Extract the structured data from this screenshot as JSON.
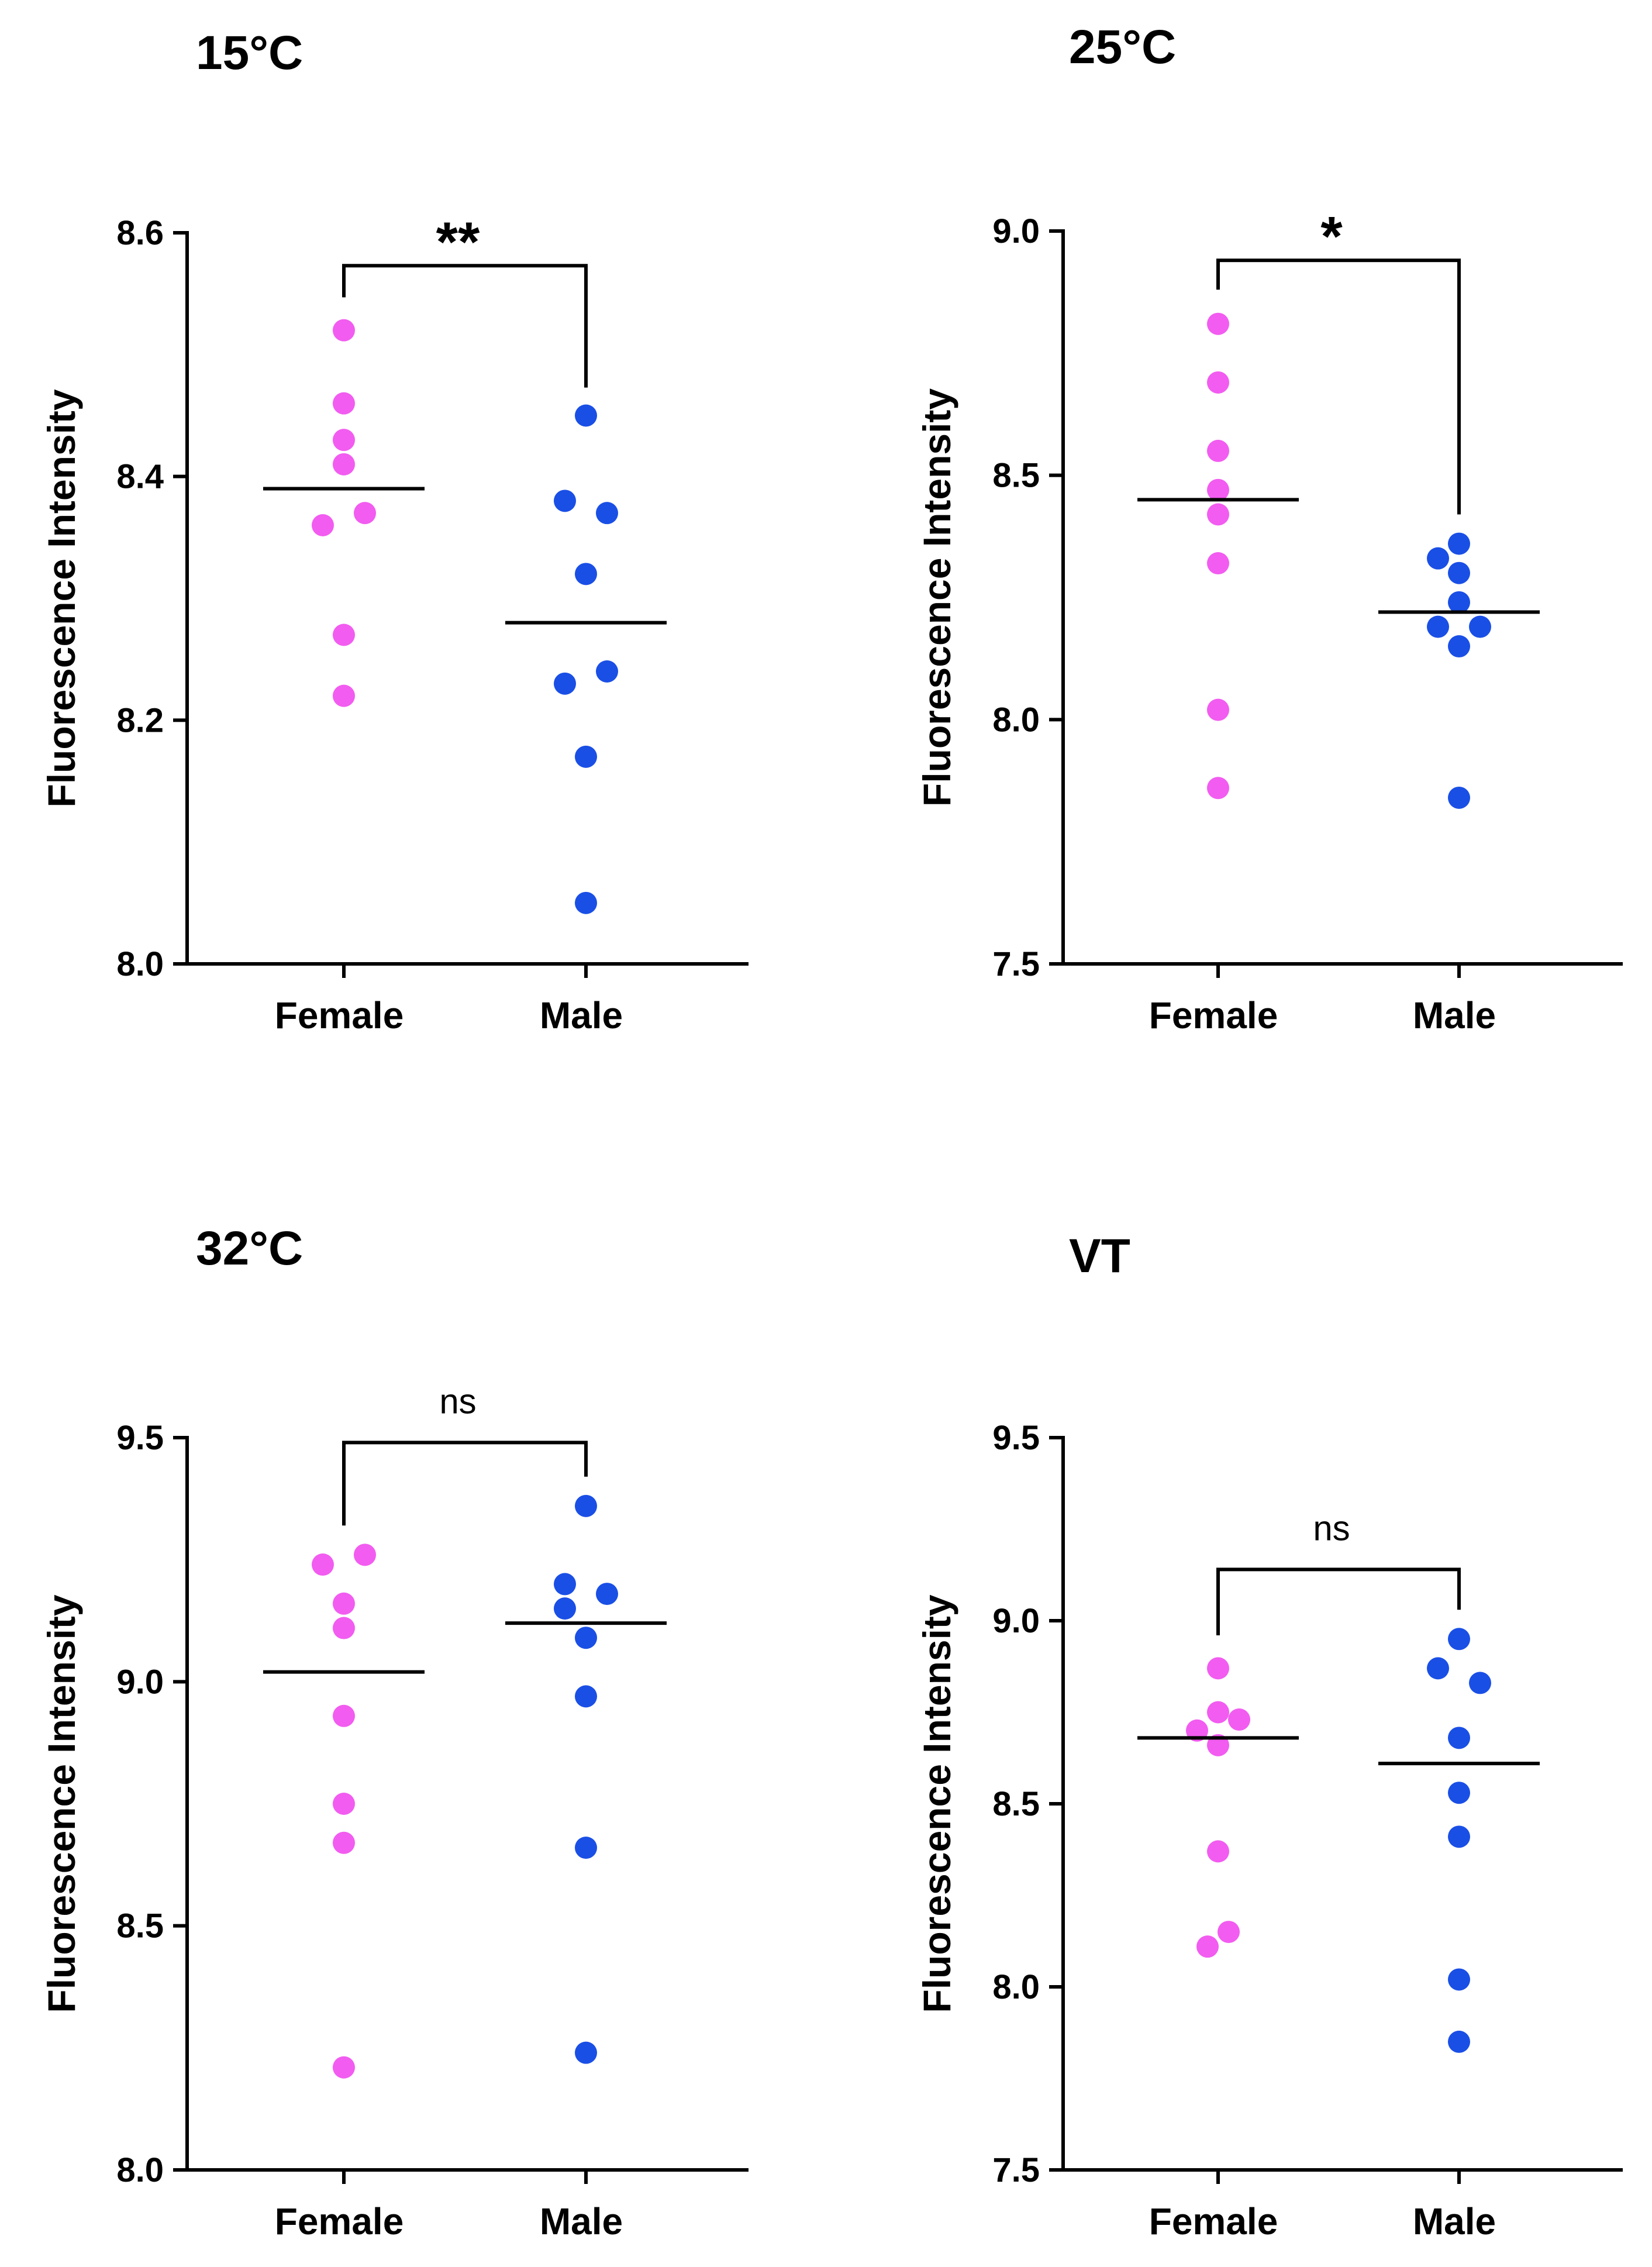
{
  "chart_data": [
    {
      "type": "scatter",
      "title": "15°C",
      "xlabel": "",
      "ylabel": "Fluorescence Intensity",
      "ylim": [
        8.0,
        8.6
      ],
      "yticks": [
        8.0,
        8.2,
        8.4,
        8.6
      ],
      "ytick_labels": [
        "8.0",
        "8.2",
        "8.4",
        "8.6"
      ],
      "categories": [
        "Female",
        "Male"
      ],
      "series": [
        {
          "name": "Female",
          "color": "#f25cf0",
          "mean": 8.39,
          "points": [
            {
              "offset": 0,
              "value": 8.52
            },
            {
              "offset": 0,
              "value": 8.46
            },
            {
              "offset": 0,
              "value": 8.43
            },
            {
              "offset": 0,
              "value": 8.41
            },
            {
              "offset": 1,
              "value": 8.37
            },
            {
              "offset": -1,
              "value": 8.36
            },
            {
              "offset": 0,
              "value": 8.27
            },
            {
              "offset": 0,
              "value": 8.22
            }
          ]
        },
        {
          "name": "Male",
          "color": "#1a4fe6",
          "mean": 8.28,
          "points": [
            {
              "offset": 0,
              "value": 8.45
            },
            {
              "offset": -1,
              "value": 8.38
            },
            {
              "offset": 1,
              "value": 8.37
            },
            {
              "offset": 0,
              "value": 8.32
            },
            {
              "offset": 1,
              "value": 8.24
            },
            {
              "offset": -1,
              "value": 8.23
            },
            {
              "offset": 0,
              "value": 8.17
            },
            {
              "offset": 0,
              "value": 8.05
            }
          ]
        }
      ],
      "significance": {
        "label": "**",
        "style": "star",
        "bracket_y": 8.573,
        "left_drop": 8.547,
        "right_drop": 8.473
      }
    },
    {
      "type": "scatter",
      "title": "25°C",
      "xlabel": "",
      "ylabel": "Fluorescence Intensity",
      "ylim": [
        7.5,
        9.0
      ],
      "yticks": [
        7.5,
        8.0,
        8.5,
        9.0
      ],
      "ytick_labels": [
        "7.5",
        "8.0",
        "8.5",
        "9.0"
      ],
      "categories": [
        "Female",
        "Male"
      ],
      "series": [
        {
          "name": "Female",
          "color": "#f25cf0",
          "mean": 8.45,
          "points": [
            {
              "offset": 0,
              "value": 8.81
            },
            {
              "offset": 0,
              "value": 8.69
            },
            {
              "offset": 0,
              "value": 8.55
            },
            {
              "offset": 0,
              "value": 8.47
            },
            {
              "offset": 0,
              "value": 8.42
            },
            {
              "offset": 0,
              "value": 8.32
            },
            {
              "offset": 0,
              "value": 8.02
            },
            {
              "offset": 0,
              "value": 7.86
            }
          ]
        },
        {
          "name": "Male",
          "color": "#1a4fe6",
          "mean": 8.22,
          "points": [
            {
              "offset": 0,
              "value": 8.36
            },
            {
              "offset": -1,
              "value": 8.33
            },
            {
              "offset": 0,
              "value": 8.3
            },
            {
              "offset": 0,
              "value": 8.24
            },
            {
              "offset": -1,
              "value": 8.19
            },
            {
              "offset": 1,
              "value": 8.19
            },
            {
              "offset": 0,
              "value": 8.15
            },
            {
              "offset": 0,
              "value": 7.84
            }
          ]
        }
      ],
      "significance": {
        "label": "*",
        "style": "star",
        "bracket_y": 8.94,
        "left_drop": 8.88,
        "right_drop": 8.42
      }
    },
    {
      "type": "scatter",
      "title": "32°C",
      "xlabel": "",
      "ylabel": "Fluorescence Intensity",
      "ylim": [
        8.0,
        9.5
      ],
      "yticks": [
        8.0,
        8.5,
        9.0,
        9.5
      ],
      "ytick_labels": [
        "8.0",
        "8.5",
        "9.0",
        "9.5"
      ],
      "categories": [
        "Female",
        "Male"
      ],
      "series": [
        {
          "name": "Female",
          "color": "#f25cf0",
          "mean": 9.02,
          "points": [
            {
              "offset": 1,
              "value": 9.26
            },
            {
              "offset": -1,
              "value": 9.24
            },
            {
              "offset": 0,
              "value": 9.16
            },
            {
              "offset": 0,
              "value": 9.11
            },
            {
              "offset": 0,
              "value": 8.93
            },
            {
              "offset": 0,
              "value": 8.75
            },
            {
              "offset": 0,
              "value": 8.67
            },
            {
              "offset": 0,
              "value": 8.21
            }
          ]
        },
        {
          "name": "Male",
          "color": "#1a4fe6",
          "mean": 9.12,
          "points": [
            {
              "offset": 0,
              "value": 9.36
            },
            {
              "offset": -1,
              "value": 9.2
            },
            {
              "offset": 1,
              "value": 9.18
            },
            {
              "offset": -1,
              "value": 9.15
            },
            {
              "offset": 0,
              "value": 9.09
            },
            {
              "offset": 0,
              "value": 8.97
            },
            {
              "offset": 0,
              "value": 8.66
            },
            {
              "offset": 0,
              "value": 8.24
            }
          ]
        }
      ],
      "significance": {
        "label": "ns",
        "style": "ns",
        "bracket_y": 9.49,
        "left_drop": 9.32,
        "right_drop": 9.42
      }
    },
    {
      "type": "scatter",
      "title": "VT",
      "xlabel": "",
      "ylabel": "Fluorescence Intensity",
      "ylim": [
        7.5,
        9.5
      ],
      "yticks": [
        7.5,
        8.0,
        8.5,
        9.0,
        9.5
      ],
      "ytick_labels": [
        "7.5",
        "8.0",
        "8.5",
        "9.0",
        "9.5"
      ],
      "categories": [
        "Female",
        "Male"
      ],
      "series": [
        {
          "name": "Female",
          "color": "#f25cf0",
          "mean": 8.68,
          "points": [
            {
              "offset": 0,
              "value": 8.87
            },
            {
              "offset": 0,
              "value": 8.75
            },
            {
              "offset": 1,
              "value": 8.73
            },
            {
              "offset": -1,
              "value": 8.7
            },
            {
              "offset": 0,
              "value": 8.66
            },
            {
              "offset": 0,
              "value": 8.37
            },
            {
              "offset": 0.5,
              "value": 8.15
            },
            {
              "offset": -0.5,
              "value": 8.11
            }
          ]
        },
        {
          "name": "Male",
          "color": "#1a4fe6",
          "mean": 8.61,
          "points": [
            {
              "offset": 0,
              "value": 8.95
            },
            {
              "offset": -1,
              "value": 8.87
            },
            {
              "offset": 1,
              "value": 8.83
            },
            {
              "offset": 0,
              "value": 8.68
            },
            {
              "offset": 0,
              "value": 8.53
            },
            {
              "offset": 0,
              "value": 8.41
            },
            {
              "offset": 0,
              "value": 8.02
            },
            {
              "offset": 0,
              "value": 7.85
            }
          ]
        }
      ],
      "significance": {
        "label": "ns",
        "style": "ns",
        "bracket_y": 9.14,
        "left_drop": 8.96,
        "right_drop": 9.03
      }
    }
  ]
}
